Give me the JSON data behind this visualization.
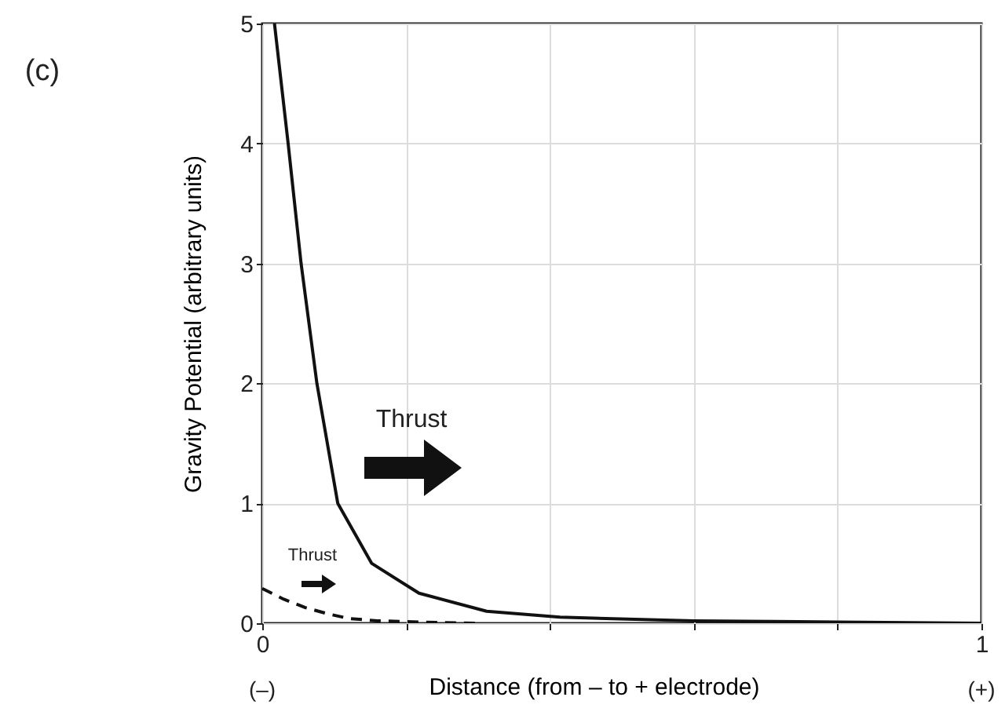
{
  "chart_data": {
    "type": "line",
    "xlabel": "Distance (from – to + electrode)",
    "ylabel": "Gravity Potential  (arbitrary units)",
    "xlim": [
      0,
      1
    ],
    "ylim": [
      0,
      5
    ],
    "xticks": [
      {
        "value": 0,
        "label": "0"
      },
      {
        "value": 0.2,
        "label": null
      },
      {
        "value": 0.4,
        "label": null
      },
      {
        "value": 0.6,
        "label": null
      },
      {
        "value": 0.8,
        "label": null
      },
      {
        "value": 1,
        "label": "1"
      }
    ],
    "yticks": [
      0,
      1,
      2,
      3,
      4,
      5
    ],
    "grid": true,
    "marker": "none",
    "annotations": [
      "(c)",
      "Thrust",
      "Thrust",
      "(–)",
      "(+)"
    ],
    "series": [
      {
        "color": "#111111",
        "line_style": "solid",
        "x": [
          0.017,
          0.036,
          0.054,
          0.076,
          0.105,
          0.152,
          0.218,
          0.312,
          0.414,
          0.6,
          0.8,
          1
        ],
        "values": [
          5,
          4,
          3,
          2,
          1,
          0.5,
          0.25,
          0.1,
          0.05,
          0.02,
          0.01,
          0
        ]
      },
      {
        "color": "#111111",
        "line_style": "dashed",
        "x": [
          0,
          0.03,
          0.06,
          0.09,
          0.12,
          0.16,
          0.22,
          0.3
        ],
        "values": [
          0.29,
          0.2,
          0.13,
          0.08,
          0.04,
          0.02,
          0.01,
          0
        ]
      }
    ]
  }
}
